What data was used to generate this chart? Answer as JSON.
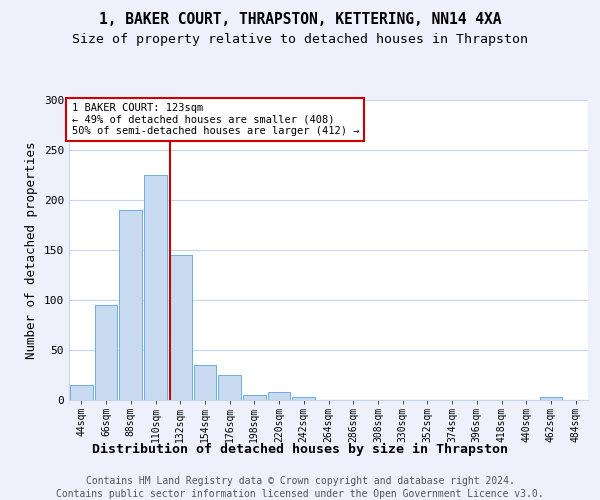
{
  "title1": "1, BAKER COURT, THRAPSTON, KETTERING, NN14 4XA",
  "title2": "Size of property relative to detached houses in Thrapston",
  "xlabel": "Distribution of detached houses by size in Thrapston",
  "ylabel": "Number of detached properties",
  "bin_labels": [
    "44sqm",
    "66sqm",
    "88sqm",
    "110sqm",
    "132sqm",
    "154sqm",
    "176sqm",
    "198sqm",
    "220sqm",
    "242sqm",
    "264sqm",
    "286sqm",
    "308sqm",
    "330sqm",
    "352sqm",
    "374sqm",
    "396sqm",
    "418sqm",
    "440sqm",
    "462sqm",
    "484sqm"
  ],
  "bar_values": [
    15,
    95,
    190,
    225,
    145,
    35,
    25,
    5,
    8,
    3,
    0,
    0,
    0,
    0,
    0,
    0,
    0,
    0,
    0,
    3,
    0
  ],
  "bar_color": "#c8daf0",
  "bar_edgecolor": "#6aaee8",
  "vline_color": "#cc0000",
  "annotation_text": "1 BAKER COURT: 123sqm\n← 49% of detached houses are smaller (408)\n50% of semi-detached houses are larger (412) →",
  "annotation_box_color": "#ffffff",
  "annotation_box_edgecolor": "#cc0000",
  "ylim": [
    0,
    300
  ],
  "yticks": [
    0,
    50,
    100,
    150,
    200,
    250,
    300
  ],
  "footer1": "Contains HM Land Registry data © Crown copyright and database right 2024.",
  "footer2": "Contains public sector information licensed under the Open Government Licence v3.0.",
  "background_color": "#eef1fb",
  "plot_background": "#ffffff",
  "grid_color": "#c8d4ee",
  "title_fontsize": 10.5,
  "subtitle_fontsize": 9.5,
  "axis_label_fontsize": 9,
  "tick_fontsize": 7,
  "footer_fontsize": 7,
  "vline_bar_index": 3.59
}
